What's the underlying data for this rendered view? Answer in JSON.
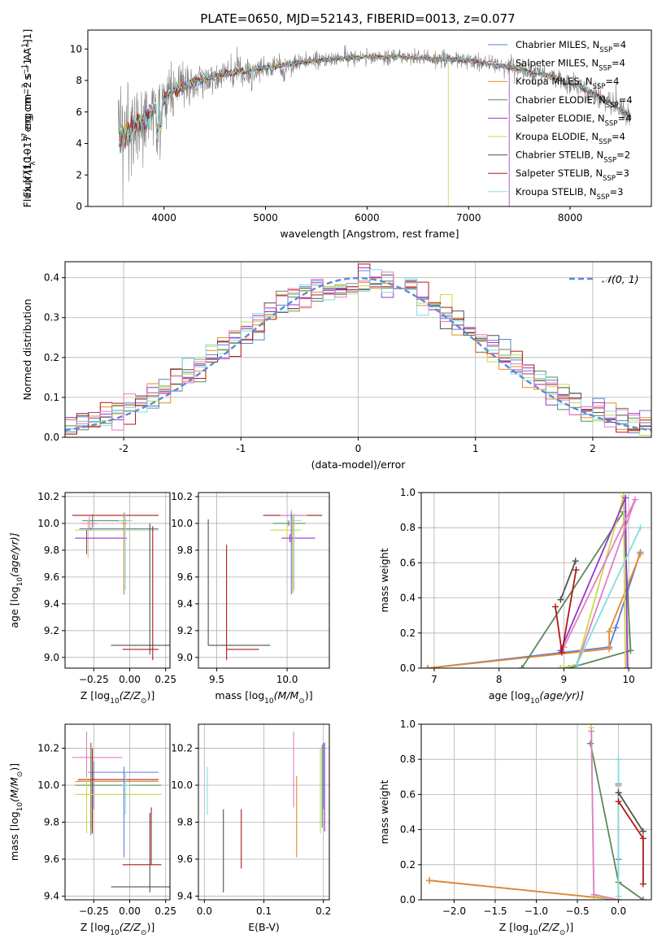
{
  "colors": {
    "chabrier_miles": "#5b7fd6",
    "salpeter_miles": "#f2f2f2",
    "kroupa_miles": "#e6892a",
    "chabrier_elodie": "#5a8a5a",
    "salpeter_elodie": "#9b35c9",
    "kroupa_elodie": "#c9d94a",
    "chabrier_stelib": "#505050",
    "salpeter_stelib": "#b01818",
    "kroupa_stelib": "#80dde0",
    "pink": "#e27dc7",
    "data": "#808080",
    "normal": "#5b8bd6"
  },
  "chart_data": [
    {
      "id": "spectrum",
      "type": "line",
      "title": "PLATE=0650, MJD=52143, FIBERID=0013, z=0.077",
      "xlabel": "wavelength [Angstrom, rest frame]",
      "ylabel_parts": [
        "Flux [f",
        "λ",
        "10",
        "−17",
        " erg cm",
        "−2",
        " s",
        "−1",
        " A",
        "−1",
        "]"
      ],
      "xlim": [
        3250,
        8800
      ],
      "ylim": [
        0,
        11.2
      ],
      "xticks": [
        4000,
        5000,
        6000,
        7000,
        8000
      ],
      "yticks": [
        0,
        2,
        4,
        6,
        8,
        10
      ],
      "grid": false,
      "legend_position": "top-right",
      "legend": [
        {
          "pre": "Chabrier MILES, N",
          "sub": "SSP",
          "post": "=4",
          "color_key": "chabrier_miles"
        },
        {
          "pre": "Salpeter MILES, N",
          "sub": "SSP",
          "post": "=4",
          "color_key": "salpeter_miles"
        },
        {
          "pre": "Kroupa MILES, N",
          "sub": "SSP",
          "post": "=4",
          "color_key": "kroupa_miles"
        },
        {
          "pre": "Chabrier ELODIE, N",
          "sub": "SSP",
          "post": "=4",
          "color_key": "chabrier_elodie"
        },
        {
          "pre": "Salpeter ELODIE, N",
          "sub": "SSP",
          "post": "=4",
          "color_key": "salpeter_elodie"
        },
        {
          "pre": "Kroupa ELODIE, N",
          "sub": "SSP",
          "post": "=4",
          "color_key": "kroupa_elodie"
        },
        {
          "pre": "Chabrier STELIB, N",
          "sub": "SSP",
          "post": "=2",
          "color_key": "chabrier_stelib"
        },
        {
          "pre": "Salpeter STELIB, N",
          "sub": "SSP",
          "post": "=3",
          "color_key": "salpeter_stelib"
        },
        {
          "pre": "Kroupa STELIB, N",
          "sub": "SSP",
          "post": "=3",
          "color_key": "kroupa_stelib"
        }
      ],
      "continuum": {
        "x": [
          3550,
          3700,
          3850,
          3950,
          4100,
          4300,
          4500,
          4800,
          5100,
          5400,
          5700,
          6000,
          6300,
          6600,
          6900,
          7200,
          7500,
          7800,
          8100,
          8400,
          8600
        ],
        "y": [
          4.3,
          5.0,
          5.7,
          6.6,
          7.3,
          7.9,
          8.3,
          8.6,
          8.9,
          9.2,
          9.4,
          9.5,
          9.5,
          9.4,
          9.3,
          9.1,
          8.7,
          8.3,
          7.6,
          6.6,
          5.6
        ]
      },
      "observed_noise_scale": [
        [
          3550,
          3.2
        ],
        [
          4000,
          1.6
        ],
        [
          4600,
          0.9
        ],
        [
          5200,
          0.6
        ],
        [
          6000,
          0.45
        ],
        [
          7000,
          0.5
        ],
        [
          8000,
          0.6
        ],
        [
          8600,
          0.8
        ]
      ],
      "model_dropouts": [
        {
          "color_key": "kroupa_elodie",
          "x": 6800
        },
        {
          "color_key": "salpeter_elodie",
          "x": 7400
        }
      ]
    },
    {
      "id": "residuals",
      "type": "histogram",
      "xlabel": "(data-model)/error",
      "ylabel": "Normed distribution",
      "xlim": [
        -2.5,
        2.5
      ],
      "ylim": [
        0,
        0.44
      ],
      "xticks": [
        -2,
        -1,
        0,
        1,
        2
      ],
      "yticks": [
        0,
        0.1,
        0.2,
        0.3,
        0.4
      ],
      "grid": true,
      "bin_width": 0.1,
      "legend": {
        "label": "𝒩(0, 1)",
        "color_key": "normal",
        "position": "top-right"
      },
      "series_color_keys": [
        "chabrier_miles",
        "kroupa_miles",
        "chabrier_elodie",
        "salpeter_elodie",
        "kroupa_elodie",
        "chabrier_stelib",
        "salpeter_stelib",
        "kroupa_stelib",
        "pink"
      ]
    },
    {
      "id": "z-age",
      "type": "errorbar",
      "xlabel_parts": [
        "Z [log",
        "10",
        "(Z/Z",
        "⊙",
        ")]"
      ],
      "ylabel_parts": [
        "age  [log",
        "10",
        "(age/yr)]"
      ],
      "xlim": [
        -0.45,
        0.28
      ],
      "ylim": [
        8.92,
        10.23
      ],
      "xticks": [
        -0.25,
        0.0,
        0.25
      ],
      "xticklabels": [
        "−0.25",
        "0.00",
        "0.25"
      ],
      "yticks": [
        9.0,
        9.2,
        9.4,
        9.6,
        9.8,
        10.0,
        10.2
      ],
      "grid": true,
      "points": [
        {
          "x": -0.06,
          "y": 10.06,
          "xlo": -0.4,
          "xhi": 0.2,
          "ylo": 10.06,
          "yhi": 10.06,
          "color_key": "salpeter_stelib"
        },
        {
          "x": -0.26,
          "y": 10.02,
          "xlo": -0.33,
          "xhi": -0.04,
          "ylo": 9.97,
          "yhi": 10.07,
          "color_key": "chabrier_elodie"
        },
        {
          "x": -0.29,
          "y": 9.95,
          "xlo": -0.38,
          "xhi": 0.2,
          "ylo": 9.74,
          "yhi": 10.03,
          "color_key": "kroupa_elodie"
        },
        {
          "x": -0.27,
          "y": 9.96,
          "xlo": -0.35,
          "xhi": 0.2,
          "ylo": 9.95,
          "yhi": 9.97,
          "color_key": "chabrier_miles"
        },
        {
          "x": -0.3,
          "y": 9.89,
          "xlo": -0.38,
          "xhi": -0.02,
          "ylo": 9.77,
          "yhi": 9.95,
          "color_key": "salpeter_elodie"
        },
        {
          "x": -0.04,
          "y": 10.02,
          "xlo": -0.1,
          "xhi": 0.0,
          "ylo": 9.47,
          "yhi": 10.08,
          "color_key": "chabrier_miles"
        },
        {
          "x": -0.03,
          "y": 10.02,
          "xlo": -0.08,
          "xhi": 0.02,
          "ylo": 9.5,
          "yhi": 10.08,
          "color_key": "kroupa_stelib"
        },
        {
          "x": -0.04,
          "y": 10.0,
          "xlo": -0.06,
          "xhi": -0.02,
          "ylo": 9.48,
          "yhi": 10.08,
          "color_key": "kroupa_miles"
        },
        {
          "x": 0.16,
          "y": 9.06,
          "xlo": -0.05,
          "xhi": 0.2,
          "ylo": 8.98,
          "yhi": 9.98,
          "color_key": "salpeter_stelib"
        },
        {
          "x": 0.14,
          "y": 9.09,
          "xlo": -0.13,
          "xhi": 0.28,
          "ylo": 9.02,
          "yhi": 10.0,
          "color_key": "chabrier_stelib"
        },
        {
          "x": -0.28,
          "y": 10.0,
          "xlo": -0.34,
          "xhi": -0.22,
          "ylo": 9.95,
          "yhi": 10.06,
          "color_key": "pink"
        }
      ]
    },
    {
      "id": "mass-age",
      "type": "errorbar",
      "xlabel_parts": [
        "mass [log",
        "10",
        "(M/M",
        "⊙",
        ")]"
      ],
      "xlim": [
        9.37,
        10.3
      ],
      "ylim": [
        8.92,
        10.23
      ],
      "xticks": [
        9.5,
        10.0
      ],
      "xticklabels": [
        "9.5",
        "10.0"
      ],
      "yticks": [
        9.0,
        9.2,
        9.4,
        9.6,
        9.8,
        10.0,
        10.2
      ],
      "grid": true,
      "points": [
        {
          "x": 10.05,
          "y": 10.06,
          "xlo": 9.83,
          "xhi": 10.25,
          "ylo": 10.06,
          "yhi": 10.06,
          "color_key": "salpeter_stelib"
        },
        {
          "x": 10.03,
          "y": 10.06,
          "xlo": 9.95,
          "xhi": 10.14,
          "ylo": 9.85,
          "yhi": 10.1,
          "color_key": "pink"
        },
        {
          "x": 10.01,
          "y": 10.0,
          "xlo": 9.9,
          "xhi": 10.13,
          "ylo": 9.98,
          "yhi": 10.02,
          "color_key": "chabrier_elodie"
        },
        {
          "x": 10.0,
          "y": 9.95,
          "xlo": 9.88,
          "xhi": 10.1,
          "ylo": 9.9,
          "yhi": 10.0,
          "color_key": "kroupa_elodie"
        },
        {
          "x": 10.02,
          "y": 9.89,
          "xlo": 9.96,
          "xhi": 10.2,
          "ylo": 9.86,
          "yhi": 9.92,
          "color_key": "salpeter_elodie"
        },
        {
          "x": 10.03,
          "y": 10.0,
          "xlo": 10.0,
          "xhi": 10.06,
          "ylo": 9.47,
          "yhi": 10.08,
          "color_key": "chabrier_miles"
        },
        {
          "x": 10.05,
          "y": 10.02,
          "xlo": 10.0,
          "xhi": 10.1,
          "ylo": 9.5,
          "yhi": 10.08,
          "color_key": "kroupa_stelib"
        },
        {
          "x": 10.04,
          "y": 10.0,
          "xlo": 10.02,
          "xhi": 10.06,
          "ylo": 9.48,
          "yhi": 10.06,
          "color_key": "kroupa_miles"
        },
        {
          "x": 9.44,
          "y": 9.09,
          "xlo": 9.44,
          "xhi": 9.88,
          "ylo": 9.09,
          "yhi": 10.03,
          "color_key": "chabrier_stelib"
        },
        {
          "x": 9.57,
          "y": 9.06,
          "xlo": 9.57,
          "xhi": 9.8,
          "ylo": 8.98,
          "yhi": 9.84,
          "color_key": "salpeter_stelib"
        }
      ]
    },
    {
      "id": "age-weight",
      "type": "line",
      "xlabel_parts": [
        "age  [log",
        "10",
        "(age/yr)]"
      ],
      "ylabel": "mass weight",
      "xlim": [
        6.8,
        10.35
      ],
      "ylim": [
        0,
        1
      ],
      "xticks": [
        7,
        8,
        9,
        10
      ],
      "yticks": [
        0.0,
        0.2,
        0.4,
        0.6,
        0.8,
        1.0
      ],
      "grid": true,
      "series": [
        {
          "color_key": "chabrier_miles",
          "x": [
            6.9,
            9.7,
            9.8,
            10.18
          ],
          "y": [
            0.0,
            0.12,
            0.23,
            0.66
          ]
        },
        {
          "color_key": "kroupa_miles",
          "x": [
            6.9,
            9.7,
            9.7,
            10.18
          ],
          "y": [
            0.0,
            0.11,
            0.21,
            0.65
          ]
        },
        {
          "color_key": "chabrier_elodie",
          "x": [
            8.35,
            9.92,
            10.03,
            9.08,
            8.95
          ],
          "y": [
            0.0,
            0.89,
            0.1,
            0.0,
            0.0
          ]
        },
        {
          "color_key": "kroupa_elodie",
          "x": [
            8.95,
            9.2,
            9.92,
            9.95
          ],
          "y": [
            0.0,
            0.02,
            0.98,
            0.0
          ]
        },
        {
          "color_key": "salpeter_elodie",
          "x": [
            8.95,
            9.95,
            9.98
          ],
          "y": [
            0.1,
            0.97,
            0.0
          ]
        },
        {
          "color_key": "pink",
          "x": [
            9.0,
            10.1,
            9.2
          ],
          "y": [
            0.12,
            0.96,
            0.02
          ]
        },
        {
          "color_key": "kroupa_stelib",
          "x": [
            9.2,
            10.18
          ],
          "y": [
            0.02,
            0.8
          ]
        },
        {
          "color_key": "chabrier_stelib",
          "x": [
            8.95,
            9.18
          ],
          "y": [
            0.39,
            0.61
          ]
        },
        {
          "color_key": "salpeter_stelib",
          "x": [
            8.87,
            8.97,
            9.19
          ],
          "y": [
            0.35,
            0.09,
            0.56
          ]
        }
      ]
    },
    {
      "id": "z-mass",
      "type": "errorbar",
      "xlabel_parts": [
        "Z [log",
        "10",
        "(Z/Z",
        "⊙",
        ")]"
      ],
      "ylabel_parts": [
        "mass [log",
        "10",
        "(M/M",
        "⊙",
        ")]"
      ],
      "xlim": [
        -0.45,
        0.28
      ],
      "ylim": [
        9.38,
        10.33
      ],
      "xticks": [
        -0.25,
        0.0,
        0.25
      ],
      "xticklabels": [
        "−0.25",
        "0.00",
        "0.25"
      ],
      "yticks": [
        9.4,
        9.6,
        9.8,
        10.0,
        10.2
      ],
      "grid": true,
      "points": [
        {
          "x": -0.3,
          "y": 10.15,
          "xlo": -0.4,
          "xhi": -0.05,
          "ylo": 10.02,
          "yhi": 10.29,
          "color_key": "pink"
        },
        {
          "x": -0.25,
          "y": 10.07,
          "xlo": -0.29,
          "xhi": 0.2,
          "ylo": 9.87,
          "yhi": 10.13,
          "color_key": "chabrier_miles"
        },
        {
          "x": -0.26,
          "y": 10.03,
          "xlo": -0.36,
          "xhi": 0.2,
          "ylo": 9.74,
          "yhi": 10.2,
          "color_key": "salpeter_stelib"
        },
        {
          "x": -0.27,
          "y": 10.02,
          "xlo": -0.38,
          "xhi": 0.2,
          "ylo": 9.77,
          "yhi": 10.23,
          "color_key": "kroupa_miles"
        },
        {
          "x": -0.27,
          "y": 10.0,
          "xlo": -0.38,
          "xhi": 0.22,
          "ylo": 9.73,
          "yhi": 10.23,
          "color_key": "chabrier_elodie"
        },
        {
          "x": -0.3,
          "y": 9.95,
          "xlo": -0.38,
          "xhi": 0.22,
          "ylo": 9.74,
          "yhi": 10.05,
          "color_key": "kroupa_elodie"
        },
        {
          "x": -0.04,
          "y": 10.0,
          "xlo": -0.05,
          "xhi": 0.0,
          "ylo": 9.61,
          "yhi": 10.1,
          "color_key": "chabrier_miles"
        },
        {
          "x": -0.03,
          "y": 10.0,
          "xlo": -0.05,
          "xhi": 0.0,
          "ylo": 9.84,
          "yhi": 10.07,
          "color_key": "kroupa_stelib"
        },
        {
          "x": 0.15,
          "y": 9.57,
          "xlo": -0.05,
          "xhi": 0.22,
          "ylo": 9.57,
          "yhi": 9.88,
          "color_key": "salpeter_stelib"
        },
        {
          "x": 0.14,
          "y": 9.45,
          "xlo": -0.13,
          "xhi": 0.28,
          "ylo": 9.42,
          "yhi": 9.85,
          "color_key": "chabrier_stelib"
        }
      ]
    },
    {
      "id": "ebv-mass",
      "type": "errorbar",
      "xlabel": "E(B-V)",
      "xlim": [
        -0.01,
        0.21
      ],
      "ylim": [
        9.38,
        10.33
      ],
      "xticks": [
        0.0,
        0.1,
        0.2
      ],
      "xticklabels": [
        "0.0",
        "0.1",
        "0.2"
      ],
      "yticks": [
        9.4,
        9.6,
        9.8,
        10.0,
        10.2
      ],
      "grid": true,
      "points": [
        {
          "x": 0.005,
          "y": 10.0,
          "xlo": 0.005,
          "xhi": 0.005,
          "ylo": 9.84,
          "yhi": 10.1,
          "color_key": "kroupa_stelib"
        },
        {
          "x": 0.032,
          "y": 9.6,
          "xlo": 0.032,
          "xhi": 0.032,
          "ylo": 9.42,
          "yhi": 9.87,
          "color_key": "chabrier_stelib"
        },
        {
          "x": 0.062,
          "y": 9.7,
          "xlo": 0.062,
          "xhi": 0.062,
          "ylo": 9.55,
          "yhi": 9.87,
          "color_key": "salpeter_stelib"
        },
        {
          "x": 0.15,
          "y": 10.1,
          "xlo": 0.15,
          "xhi": 0.15,
          "ylo": 9.88,
          "yhi": 10.29,
          "color_key": "pink"
        },
        {
          "x": 0.155,
          "y": 9.8,
          "xlo": 0.155,
          "xhi": 0.155,
          "ylo": 9.61,
          "yhi": 10.05,
          "color_key": "kroupa_miles"
        },
        {
          "x": 0.195,
          "y": 10.0,
          "xlo": 0.195,
          "xhi": 0.195,
          "ylo": 9.74,
          "yhi": 10.2,
          "color_key": "kroupa_elodie"
        },
        {
          "x": 0.198,
          "y": 10.0,
          "xlo": 0.198,
          "xhi": 0.198,
          "ylo": 9.77,
          "yhi": 10.22,
          "color_key": "chabrier_elodie"
        },
        {
          "x": 0.2,
          "y": 10.0,
          "xlo": 0.2,
          "xhi": 0.2,
          "ylo": 9.87,
          "yhi": 10.23,
          "color_key": "chabrier_miles"
        },
        {
          "x": 0.202,
          "y": 10.0,
          "xlo": 0.202,
          "xhi": 0.202,
          "ylo": 9.75,
          "yhi": 10.23,
          "color_key": "salpeter_elodie"
        }
      ]
    },
    {
      "id": "z-weight",
      "type": "line",
      "xlabel_parts": [
        "Z [log",
        "10",
        "(Z/Z",
        "⊙",
        ")]"
      ],
      "ylabel": "mass weight",
      "xlim": [
        -2.4,
        0.4
      ],
      "ylim": [
        0,
        1
      ],
      "xticks": [
        -2.0,
        -1.5,
        -1.0,
        -0.5,
        0.0
      ],
      "xticklabels": [
        "−2.0",
        "−1.5",
        "−1.0",
        "−0.5",
        "0.0"
      ],
      "yticks": [
        0.0,
        0.2,
        0.4,
        0.6,
        0.8,
        1.0
      ],
      "grid": true,
      "series": [
        {
          "color_key": "chabrier_miles",
          "x": [
            -2.3,
            0.0,
            0.0,
            0.0
          ],
          "y": [
            0.11,
            0.0,
            0.23,
            0.66
          ]
        },
        {
          "color_key": "kroupa_miles",
          "x": [
            -2.3,
            0.0,
            0.0
          ],
          "y": [
            0.11,
            0.0,
            0.65
          ]
        },
        {
          "color_key": "chabrier_elodie",
          "x": [
            -0.34,
            0.0,
            0.3
          ],
          "y": [
            0.89,
            0.1,
            0.0
          ]
        },
        {
          "color_key": "kroupa_elodie",
          "x": [
            -0.33,
            -0.3,
            0.0
          ],
          "y": [
            0.98,
            0.02,
            0.0
          ]
        },
        {
          "color_key": "pink",
          "x": [
            -0.33,
            -0.3,
            0.0
          ],
          "y": [
            0.96,
            0.03,
            0.0
          ]
        },
        {
          "color_key": "kroupa_stelib",
          "x": [
            0.0,
            0.0
          ],
          "y": [
            0.02,
            0.8
          ]
        },
        {
          "color_key": "chabrier_stelib",
          "x": [
            0.0,
            0.3
          ],
          "y": [
            0.61,
            0.39
          ]
        },
        {
          "color_key": "salpeter_stelib",
          "x": [
            0.0,
            0.3,
            0.3
          ],
          "y": [
            0.56,
            0.35,
            0.09
          ]
        }
      ]
    }
  ]
}
